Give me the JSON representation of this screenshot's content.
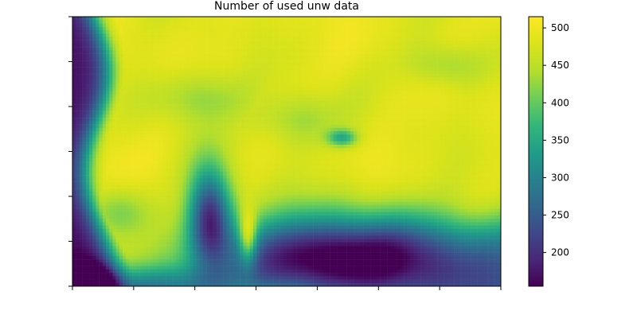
{
  "chart_data": {
    "type": "heatmap",
    "title": "Number of used unw data",
    "xlabel": "",
    "ylabel": "",
    "colormap": "viridis",
    "colorbar": {
      "min": 155,
      "max": 515,
      "ticks": [
        200,
        250,
        300,
        350,
        400,
        450,
        500
      ]
    },
    "x_ticks_count": 8,
    "y_ticks_count": 7,
    "grid": false
  }
}
